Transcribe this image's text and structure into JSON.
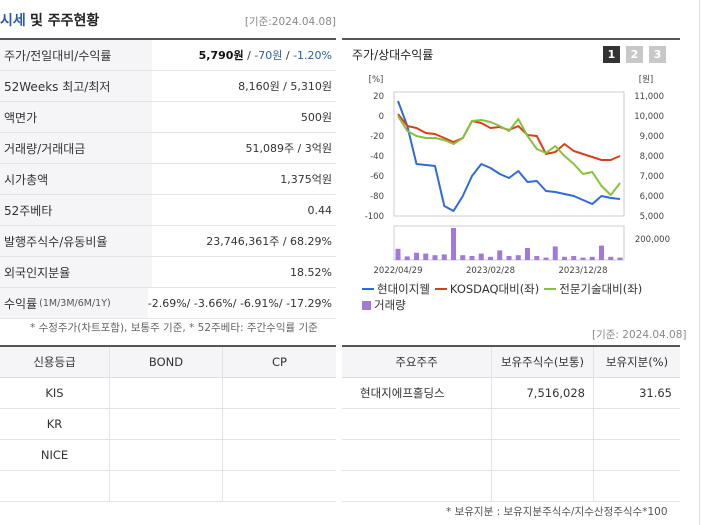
{
  "header": {
    "title_accent": "시세",
    "title_rest": "및 주주현황",
    "basis": "[기준:2024.04.08]"
  },
  "info": {
    "price_label": "주가/전일대비/수익률",
    "price_value": "5,790원",
    "price_change": "-70원",
    "price_sep": " / ",
    "price_return": "-1.20%",
    "w52_label": "52Weeks 최고/최저",
    "w52_value": "8,160원 / 5,310원",
    "par_label": "액면가",
    "par_value": "500원",
    "volume_label": "거래량/거래대금",
    "volume_value": "51,089주 / 3억원",
    "cap_label": "시가총액",
    "cap_value": "1,375억원",
    "beta_label": "52주베타",
    "beta_value": "0.44",
    "shares_label": "발행주식수/유동비율",
    "shares_value": "23,746,361주 / 68.29%",
    "foreign_label": "외국인지분율",
    "foreign_value": "18.52%",
    "return_label": "수익률",
    "return_period": "(1M/3M/6M/1Y)",
    "return_value": "-2.69%/ -3.66%/ -6.91%/ -17.29%"
  },
  "note1": "* 수정주가(차트포함), 보통주 기준, * 52주베타: 주간수익률 기준",
  "chart": {
    "title": "주가/상대수익률",
    "pages": [
      "1",
      "2",
      "3"
    ],
    "left_unit": "[%]",
    "right_unit": "[원]",
    "vol_tick": "200,000"
  },
  "chart_data": {
    "type": "line",
    "x": [
      "2022-04-29",
      "2022-05-31",
      "2022-06-30",
      "2022-07-29",
      "2022-08-31",
      "2022-09-30",
      "2022-10-31",
      "2022-11-30",
      "2022-12-29",
      "2023-01-31",
      "2023-02-28",
      "2023-03-31",
      "2023-04-28",
      "2023-05-31",
      "2023-06-30",
      "2023-07-31",
      "2023-08-31",
      "2023-09-27",
      "2023-10-31",
      "2023-11-30",
      "2023-12-28",
      "2024-01-31",
      "2024-02-29",
      "2024-03-29",
      "2024-04-08"
    ],
    "x_tick_labels": [
      "2022/04/29",
      "2023/02/28",
      "2023/12/28"
    ],
    "y_left": {
      "range": [
        -100,
        20
      ],
      "ticks": [
        "20",
        "0",
        "-20",
        "-40",
        "-60",
        "-80",
        "-100"
      ]
    },
    "y_right": {
      "range": [
        5000,
        11000
      ],
      "ticks": [
        "11,000",
        "10,000",
        "9,000",
        "8,000",
        "7,000",
        "6,000",
        "5,000"
      ]
    },
    "series": [
      {
        "name": "현대이지웰",
        "axis": "left",
        "color": "#2f6bd8",
        "values": [
          15,
          -10,
          -48,
          -49,
          -50,
          -90,
          -95,
          -80,
          -60,
          -48,
          -52,
          -58,
          -62,
          -55,
          -66,
          -65,
          -75,
          -76,
          -78,
          -80,
          -84,
          -88,
          -80,
          -82,
          -83
        ]
      },
      {
        "name": "KOSDAQ대비(좌)",
        "axis": "left",
        "color": "#d8401a",
        "values": [
          2,
          -10,
          -12,
          -17,
          -18,
          -22,
          -26,
          -22,
          -5,
          -7,
          -12,
          -11,
          -14,
          -10,
          -19,
          -20,
          -38,
          -36,
          -28,
          -35,
          -38,
          -41,
          -44,
          -44,
          -40
        ]
      },
      {
        "name": "전문기술대비(좌)",
        "axis": "left",
        "color": "#86c23a",
        "values": [
          0,
          -15,
          -20,
          -22,
          -22,
          -24,
          -28,
          -22,
          -5,
          -4,
          -6,
          -10,
          -15,
          -3,
          -20,
          -33,
          -37,
          -30,
          -40,
          -48,
          -58,
          -56,
          -70,
          -79,
          -67
        ]
      }
    ],
    "volume": {
      "name": "거래량",
      "color": "#a07ad6",
      "range": [
        0,
        400000
      ],
      "values": [
        140000,
        45000,
        90000,
        80000,
        60000,
        70000,
        400000,
        60000,
        50000,
        80000,
        40000,
        120000,
        50000,
        60000,
        150000,
        50000,
        30000,
        170000,
        40000,
        50000,
        30000,
        40000,
        180000,
        40000,
        30000
      ]
    }
  },
  "basis2": "[기준: 2024.04.08]",
  "credit": {
    "headers": [
      "신용등급",
      "BOND",
      "CP"
    ],
    "rows": [
      [
        "KIS",
        "",
        ""
      ],
      [
        "KR",
        "",
        ""
      ],
      [
        "NICE",
        "",
        ""
      ],
      [
        "",
        "",
        ""
      ]
    ]
  },
  "holders": {
    "headers": [
      "주요주주",
      "보유주식수(보통)",
      "보유지분(%)"
    ],
    "rows": [
      [
        "현대지에프홀딩스",
        "7,516,028",
        "31.65"
      ],
      [
        "",
        "",
        ""
      ],
      [
        "",
        "",
        ""
      ],
      [
        "",
        "",
        ""
      ]
    ]
  },
  "note2": "* 보유지분 : 보유지분주식수/지수산정주식수*100"
}
